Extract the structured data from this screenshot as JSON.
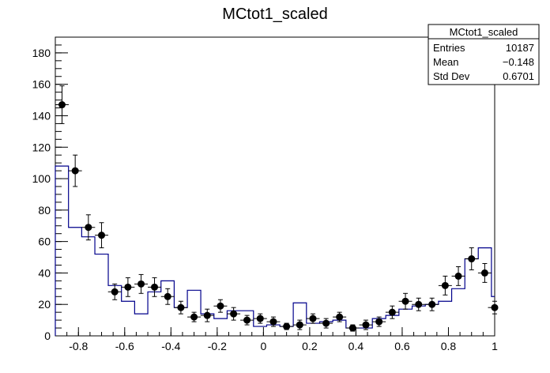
{
  "chart_data": {
    "type": "histogram",
    "title": "MCtot1_scaled",
    "xlabel": "",
    "ylabel": "",
    "xlim": [
      -0.9,
      1.0
    ],
    "ylim": [
      0,
      190
    ],
    "grid": false,
    "x_tick_labels": [
      "-0.8",
      "-0.6",
      "-0.4",
      "-0.2",
      "0",
      "0.2",
      "0.4",
      "0.6",
      "0.8",
      "1"
    ],
    "y_tick_labels": [
      "0",
      "20",
      "40",
      "60",
      "80",
      "100",
      "120",
      "140",
      "160",
      "180"
    ],
    "stats_box": {
      "title": "MCtot1_scaled",
      "rows": [
        {
          "label": "Entries",
          "value": "10187"
        },
        {
          "label": "Mean",
          "value": "−0.148"
        },
        {
          "label": "Std Dev",
          "value": "0.6701"
        }
      ]
    },
    "mc_histogram": {
      "color": "#00008b",
      "bin_edges": [
        -0.9,
        -0.843,
        -0.786,
        -0.729,
        -0.671,
        -0.614,
        -0.557,
        -0.5,
        -0.443,
        -0.386,
        -0.329,
        -0.271,
        -0.214,
        -0.157,
        -0.1,
        -0.043,
        0.014,
        0.071,
        0.129,
        0.186,
        0.243,
        0.3,
        0.357,
        0.414,
        0.471,
        0.529,
        0.586,
        0.643,
        0.7,
        0.757,
        0.814,
        0.871,
        0.929,
        0.986,
        1.0
      ],
      "values": [
        108,
        69,
        63,
        52,
        32,
        22,
        14,
        28,
        35,
        18,
        29,
        14,
        11,
        16,
        16,
        6,
        7,
        6,
        21,
        8,
        9,
        10,
        5,
        5,
        11,
        13,
        17,
        19,
        20,
        22,
        30,
        49,
        56,
        25
      ]
    },
    "data_points": {
      "color": "#000000",
      "x": [
        -0.871,
        -0.814,
        -0.757,
        -0.7,
        -0.643,
        -0.586,
        -0.529,
        -0.471,
        -0.414,
        -0.357,
        -0.3,
        -0.243,
        -0.186,
        -0.129,
        -0.071,
        -0.014,
        0.043,
        0.1,
        0.157,
        0.214,
        0.271,
        0.329,
        0.386,
        0.443,
        0.5,
        0.557,
        0.614,
        0.671,
        0.729,
        0.786,
        0.843,
        0.9,
        0.957,
        1.0
      ],
      "y": [
        147,
        105,
        69,
        64,
        28,
        31,
        33,
        31,
        25,
        18,
        12,
        13,
        19,
        14,
        10,
        11,
        9,
        6,
        7,
        11,
        8,
        12,
        5,
        7,
        9,
        15,
        22,
        20,
        20,
        32,
        38,
        49,
        40,
        18
      ],
      "yerr": [
        12,
        10,
        8,
        8,
        5,
        6,
        6,
        6,
        5,
        4,
        3,
        4,
        4,
        4,
        3,
        3,
        3,
        2,
        3,
        3,
        3,
        3,
        2,
        3,
        3,
        4,
        5,
        4,
        4,
        6,
        6,
        7,
        6,
        4
      ],
      "xerr": 0.029
    }
  }
}
